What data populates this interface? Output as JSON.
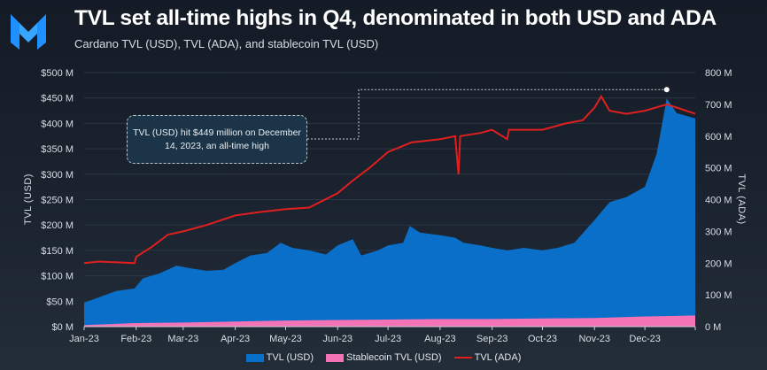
{
  "header": {
    "title": "TVL set all-time highs in Q4, denominated in both USD and ADA",
    "subtitle": "Cardano TVL (USD), TVL (ADA), and stablecoin TVL (USD)"
  },
  "chart_data": {
    "type": "area",
    "ylabel": "TVL (USD)",
    "y2label": "TVL (ADA)",
    "ylim": [
      0,
      500
    ],
    "y2lim": [
      0,
      800
    ],
    "yticks": [
      "$0 M",
      "$50 M",
      "$100 M",
      "$150 M",
      "$200 M",
      "$250 M",
      "$300 M",
      "$350 M",
      "$400 M",
      "$450 M",
      "$500 M"
    ],
    "y2ticks": [
      "0 M",
      "100 M",
      "200 M",
      "300 M",
      "400 M",
      "500 M",
      "600 M",
      "700 M",
      "800 M"
    ],
    "xticks": [
      "Jan-23",
      "Feb-23",
      "Mar-23",
      "Apr-23",
      "May-23",
      "Jun-23",
      "Jul-23",
      "Aug-23",
      "Sep-23",
      "Oct-23",
      "Nov-23",
      "Dec-23"
    ],
    "grid": true,
    "legend": "bottom",
    "colors": {
      "tvl_usd": "#0a6fc8",
      "stablecoin": "#f472b6",
      "tvl_ada": "#e01f1f"
    },
    "series": [
      {
        "name": "TVL (USD)",
        "axis": "left",
        "kind": "area",
        "points": [
          [
            "2023-01-01",
            47
          ],
          [
            "2023-01-10",
            58
          ],
          [
            "2023-01-20",
            70
          ],
          [
            "2023-01-31",
            75
          ],
          [
            "2023-02-05",
            95
          ],
          [
            "2023-02-15",
            105
          ],
          [
            "2023-02-25",
            120
          ],
          [
            "2023-03-05",
            115
          ],
          [
            "2023-03-15",
            110
          ],
          [
            "2023-03-25",
            112
          ],
          [
            "2023-04-01",
            125
          ],
          [
            "2023-04-10",
            140
          ],
          [
            "2023-04-20",
            145
          ],
          [
            "2023-04-28",
            165
          ],
          [
            "2023-05-05",
            155
          ],
          [
            "2023-05-15",
            150
          ],
          [
            "2023-05-25",
            142
          ],
          [
            "2023-06-01",
            160
          ],
          [
            "2023-06-10",
            172
          ],
          [
            "2023-06-15",
            140
          ],
          [
            "2023-06-25",
            150
          ],
          [
            "2023-07-01",
            160
          ],
          [
            "2023-07-10",
            165
          ],
          [
            "2023-07-14",
            198
          ],
          [
            "2023-07-20",
            185
          ],
          [
            "2023-08-01",
            180
          ],
          [
            "2023-08-10",
            175
          ],
          [
            "2023-08-15",
            165
          ],
          [
            "2023-08-25",
            160
          ],
          [
            "2023-09-01",
            155
          ],
          [
            "2023-09-10",
            150
          ],
          [
            "2023-09-20",
            155
          ],
          [
            "2023-10-01",
            150
          ],
          [
            "2023-10-10",
            155
          ],
          [
            "2023-10-20",
            165
          ],
          [
            "2023-11-01",
            210
          ],
          [
            "2023-11-10",
            245
          ],
          [
            "2023-11-20",
            255
          ],
          [
            "2023-12-01",
            275
          ],
          [
            "2023-12-08",
            340
          ],
          [
            "2023-12-14",
            449
          ],
          [
            "2023-12-20",
            420
          ],
          [
            "2023-12-31",
            410
          ]
        ]
      },
      {
        "name": "Stablecoin TVL (USD)",
        "axis": "left",
        "kind": "area",
        "points": [
          [
            "2023-01-01",
            3
          ],
          [
            "2023-02-01",
            7
          ],
          [
            "2023-03-01",
            8
          ],
          [
            "2023-04-01",
            10
          ],
          [
            "2023-05-01",
            12
          ],
          [
            "2023-06-01",
            13
          ],
          [
            "2023-07-01",
            14
          ],
          [
            "2023-08-01",
            15
          ],
          [
            "2023-09-01",
            15
          ],
          [
            "2023-10-01",
            16
          ],
          [
            "2023-11-01",
            17
          ],
          [
            "2023-12-01",
            20
          ],
          [
            "2023-12-31",
            22
          ]
        ]
      },
      {
        "name": "TVL (ADA)",
        "axis": "right",
        "kind": "line",
        "points": [
          [
            "2023-01-01",
            200
          ],
          [
            "2023-01-10",
            205
          ],
          [
            "2023-01-31",
            200
          ],
          [
            "2023-02-01",
            220
          ],
          [
            "2023-02-10",
            250
          ],
          [
            "2023-02-20",
            290
          ],
          [
            "2023-03-01",
            300
          ],
          [
            "2023-03-15",
            320
          ],
          [
            "2023-04-01",
            350
          ],
          [
            "2023-04-15",
            360
          ],
          [
            "2023-05-01",
            370
          ],
          [
            "2023-05-15",
            375
          ],
          [
            "2023-06-01",
            420
          ],
          [
            "2023-06-10",
            460
          ],
          [
            "2023-06-20",
            500
          ],
          [
            "2023-07-01",
            550
          ],
          [
            "2023-07-15",
            580
          ],
          [
            "2023-08-01",
            590
          ],
          [
            "2023-08-10",
            600
          ],
          [
            "2023-08-12",
            480
          ],
          [
            "2023-08-13",
            600
          ],
          [
            "2023-08-25",
            610
          ],
          [
            "2023-09-01",
            620
          ],
          [
            "2023-09-10",
            590
          ],
          [
            "2023-09-11",
            620
          ],
          [
            "2023-10-01",
            620
          ],
          [
            "2023-10-15",
            640
          ],
          [
            "2023-10-25",
            650
          ],
          [
            "2023-11-01",
            690
          ],
          [
            "2023-11-05",
            725
          ],
          [
            "2023-11-10",
            680
          ],
          [
            "2023-11-20",
            670
          ],
          [
            "2023-12-01",
            680
          ],
          [
            "2023-12-14",
            700
          ],
          [
            "2023-12-20",
            690
          ],
          [
            "2023-12-31",
            670
          ]
        ]
      }
    ],
    "annotation": {
      "text": "TVL (USD) hit $449 million on December 14, 2023, an all-time high",
      "date": "2023-12-14",
      "value": 449
    }
  }
}
